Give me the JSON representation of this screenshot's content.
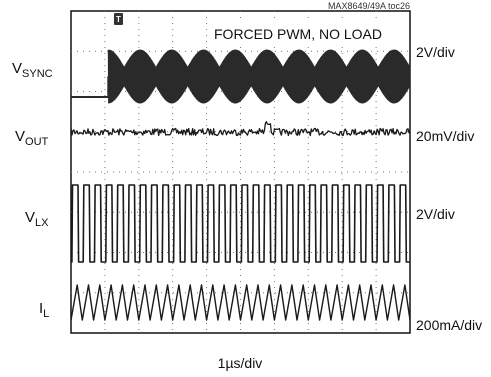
{
  "chart_data": {
    "type": "line",
    "title": "FORCED PWM, NO LOAD",
    "figure_ref": "MAX8649/49A toc26",
    "xlabel": "1µs/div",
    "grid": true,
    "trigger_marker": "T",
    "series": [
      {
        "name_base": "V",
        "name_sub": "SYNC",
        "scale": "2V/div",
        "color": "#2a2a2a",
        "waveform": "sync-burst",
        "cycles": 9.5,
        "edge_at": 0.11
      },
      {
        "name_base": "V",
        "name_sub": "OUT",
        "scale": "20mV/div",
        "color": "#1a1a1a",
        "waveform": "ripple",
        "cycles": 0
      },
      {
        "name_base": "V",
        "name_sub": "LX",
        "scale": "2V/div",
        "color": "#1a1a1a",
        "waveform": "square",
        "cycles": 30
      },
      {
        "name_base": "I",
        "name_sub": "L",
        "scale": "200mA/div",
        "color": "#1a1a1a",
        "waveform": "triangle",
        "cycles": 30
      }
    ]
  }
}
